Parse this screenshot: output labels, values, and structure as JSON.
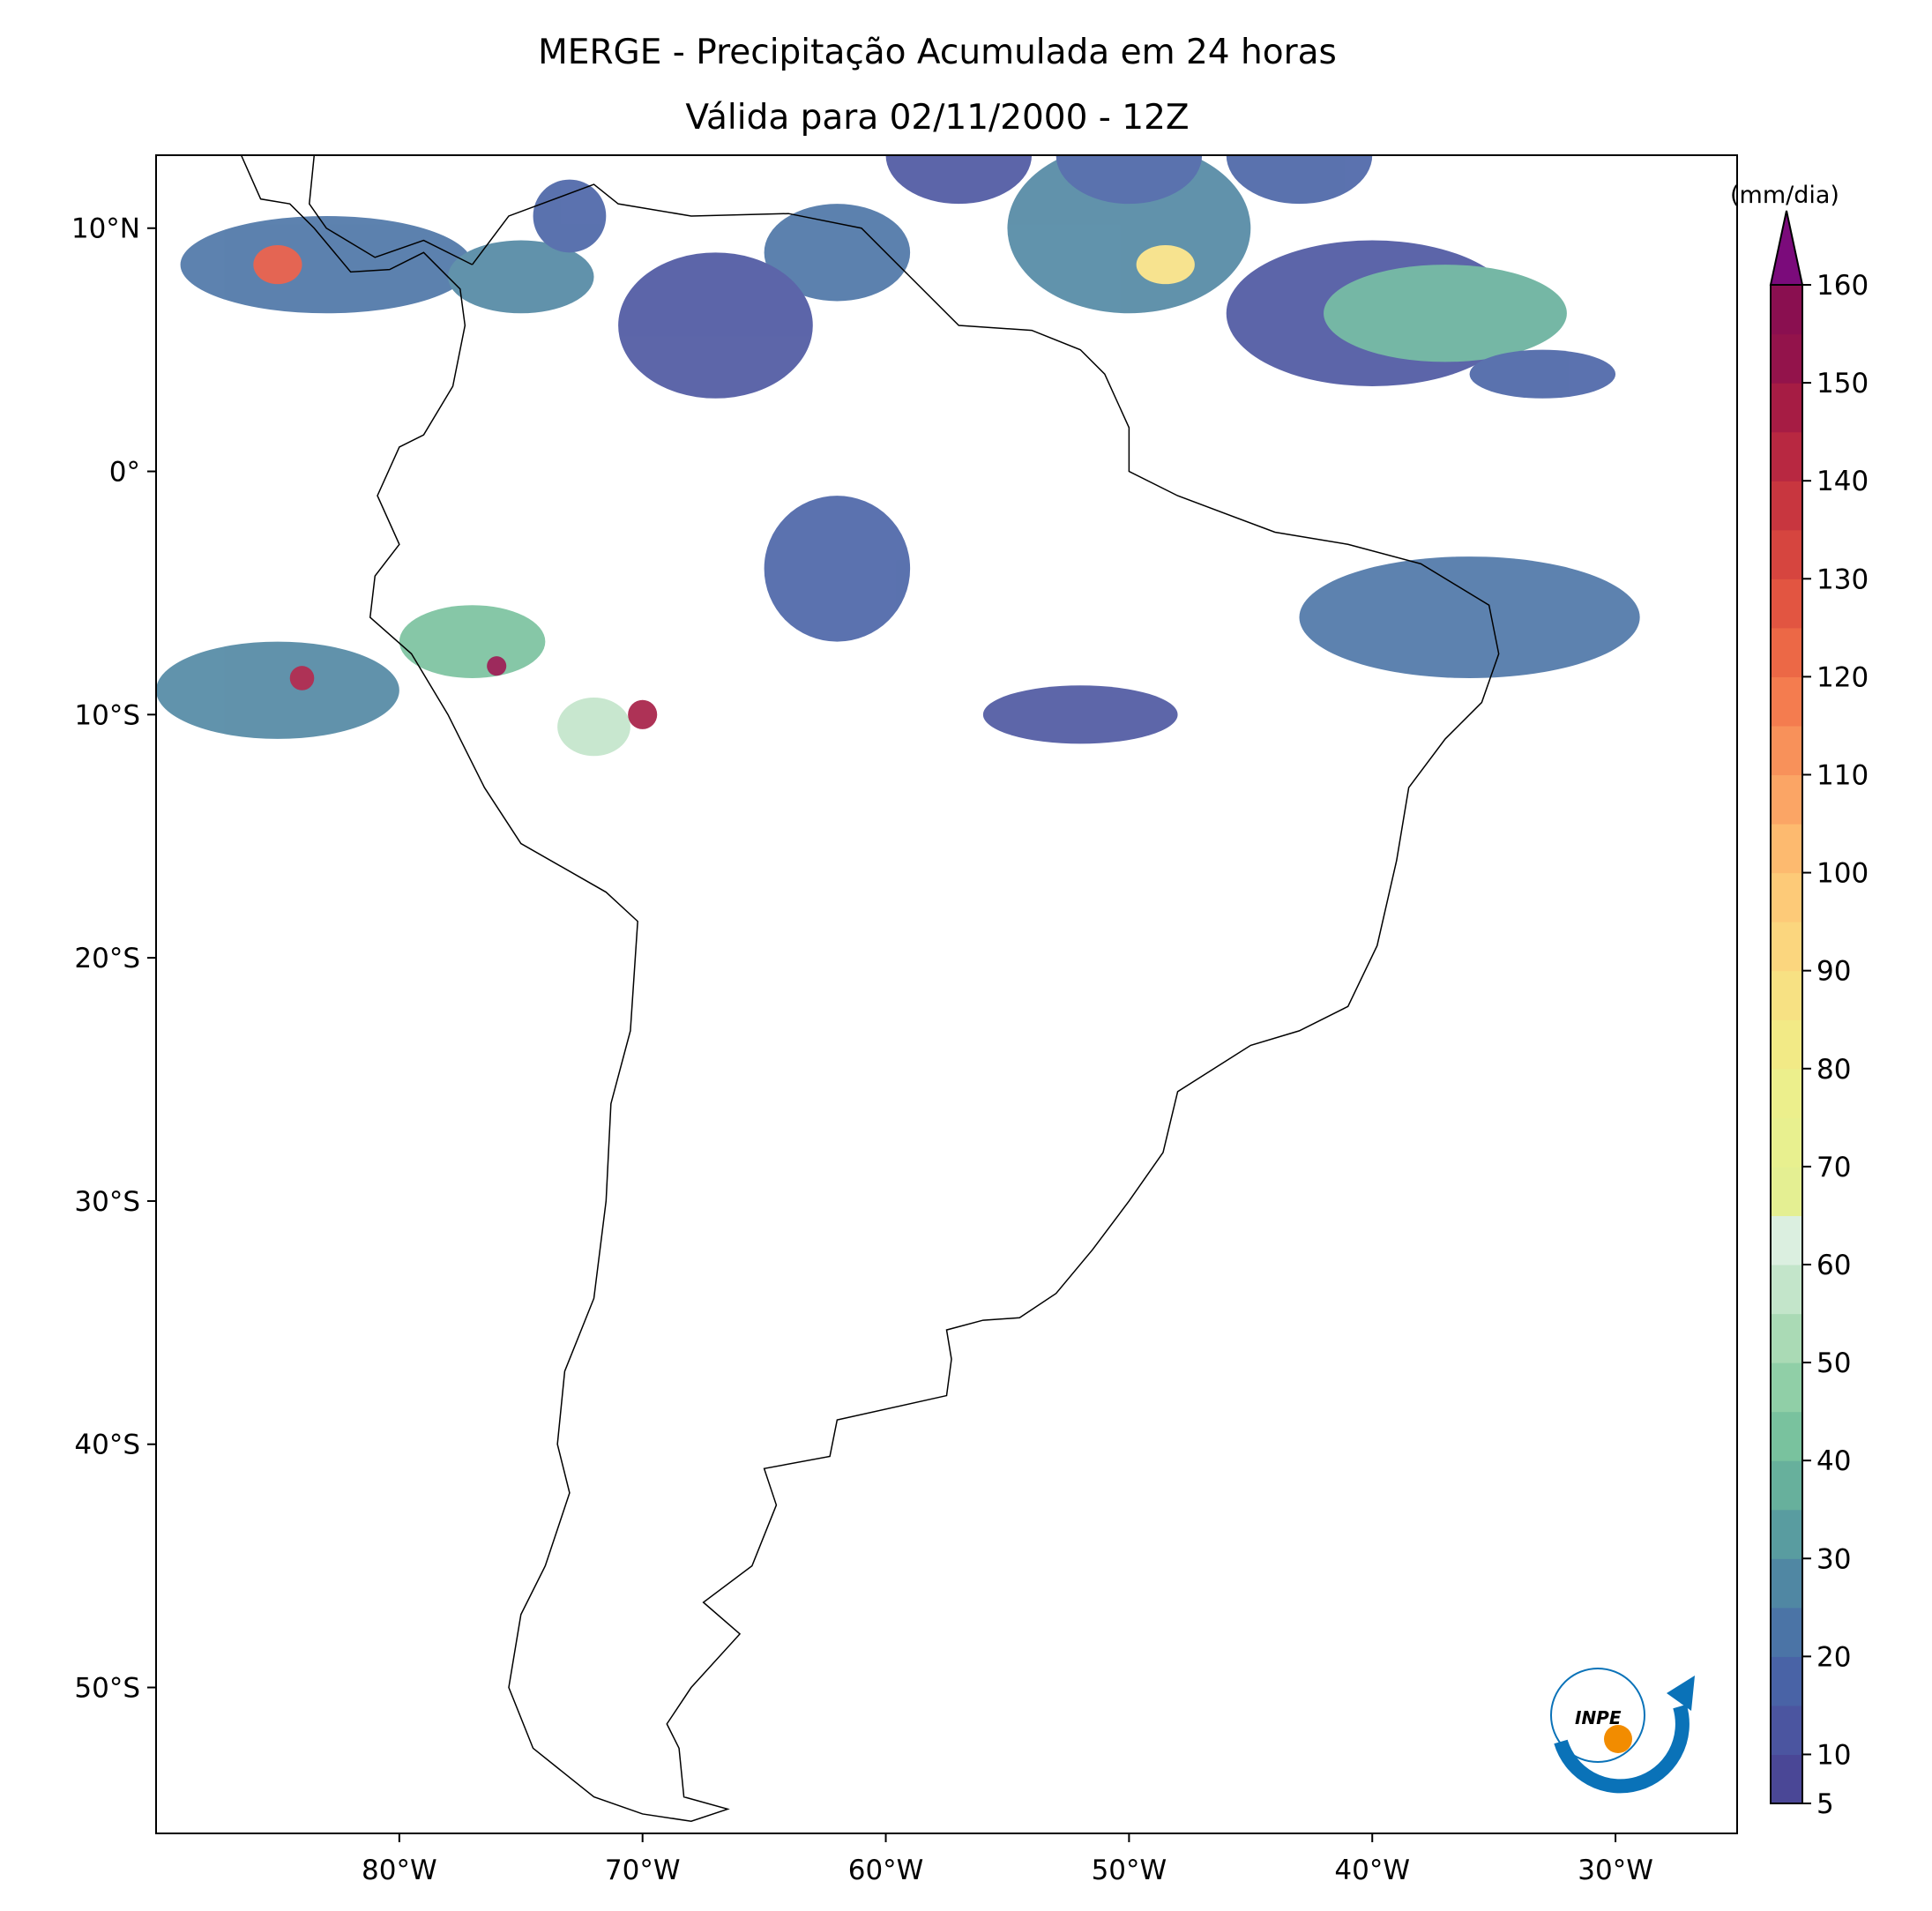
{
  "chart_data": {
    "type": "map",
    "title": "MERGE - Precipitação Acumulada em 24 horas",
    "subtitle": "Válida para 02/11/2000 - 12Z",
    "xlim": [
      -90,
      -25
    ],
    "ylim": [
      -56,
      13
    ],
    "xticks": [
      {
        "value": -80,
        "label": "80°W"
      },
      {
        "value": -70,
        "label": "70°W"
      },
      {
        "value": -60,
        "label": "60°W"
      },
      {
        "value": -50,
        "label": "50°W"
      },
      {
        "value": -40,
        "label": "40°W"
      },
      {
        "value": -30,
        "label": "30°W"
      }
    ],
    "yticks": [
      {
        "value": 10,
        "label": "10°N"
      },
      {
        "value": 0,
        "label": "0°"
      },
      {
        "value": -10,
        "label": "10°S"
      },
      {
        "value": -20,
        "label": "20°S"
      },
      {
        "value": -30,
        "label": "30°S"
      },
      {
        "value": -40,
        "label": "40°S"
      },
      {
        "value": -50,
        "label": "50°S"
      }
    ],
    "colorbar": {
      "label": "(mm/dia)",
      "lim": [
        5,
        160
      ],
      "ticks": [
        5,
        10,
        20,
        30,
        40,
        50,
        60,
        70,
        80,
        90,
        100,
        110,
        120,
        130,
        140,
        150,
        160
      ],
      "colors": [
        "#4a4796",
        "#4b55a0",
        "#4963a6",
        "#4b74a6",
        "#5087a3",
        "#599ca0",
        "#67b09c",
        "#79c29e",
        "#90cfa7",
        "#aadab5",
        "#c3e5ca",
        "#dbefe0",
        "#e4ef92",
        "#e8f08f",
        "#ecef8c",
        "#f2ea86",
        "#f7e183",
        "#fbd67e",
        "#fdca78",
        "#fdba6f",
        "#fba565",
        "#f8915a",
        "#f47c4f",
        "#ec6846",
        "#e25541",
        "#d6453f",
        "#c8363f",
        "#b82841",
        "#a61c44",
        "#93134b",
        "#8a0f50"
      ],
      "extend_color": "#7b0b7b"
    }
  },
  "logo": "INPE"
}
